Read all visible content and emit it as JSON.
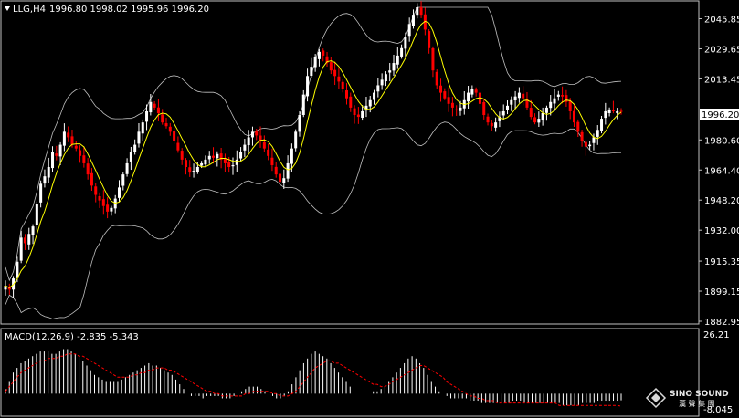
{
  "header": {
    "symbol_label": "LLG,H4",
    "ohlc_label": "1996.80 1998.02 1995.96 1996.20"
  },
  "price_axis": {
    "ticks": [
      "2045.85",
      "2029.65",
      "2013.45",
      "1996.20",
      "1980.60",
      "1964.40",
      "1948.20",
      "1932.00",
      "1915.35",
      "1899.15",
      "1882.95"
    ],
    "current_price_label": "1996.20"
  },
  "macd_panel": {
    "label": "MACD(12,26,9) -2.835 -5.343",
    "top_label": "26.21",
    "bottom_label": "-8.045"
  },
  "watermark": {
    "brand": "SINO SOUND",
    "sub": "漢 聲 集 團"
  },
  "colors": {
    "background": "#000000",
    "bull_candle": "#ffffff",
    "bear_candle": "#ff0000",
    "ma": "#ffff00",
    "bands": "#c0c0c0",
    "macd_hist": "#ffffff",
    "macd_signal": "#ff0000",
    "grid": "#c0c0c0",
    "price_tag_bg": "#ffffff"
  },
  "chart_data": [
    {
      "type": "candlestick",
      "symbol": "LLG",
      "timeframe": "H4",
      "ylim": [
        1882.95,
        2052
      ],
      "close": [
        1902,
        1900,
        1906,
        1915,
        1928,
        1925,
        1930,
        1934,
        1946,
        1957,
        1961,
        1966,
        1974,
        1972,
        1978,
        1985,
        1982,
        1978,
        1976,
        1972,
        1968,
        1962,
        1956,
        1951,
        1948,
        1945,
        1942,
        1944,
        1949,
        1955,
        1962,
        1968,
        1974,
        1978,
        1985,
        1990,
        1996,
        2001,
        1998,
        1995,
        1990,
        1988,
        1985,
        1980,
        1975,
        1970,
        1966,
        1963,
        1964,
        1966,
        1968,
        1970,
        1972,
        1971,
        1973,
        1970,
        1968,
        1966,
        1967,
        1970,
        1974,
        1978,
        1982,
        1985,
        1983,
        1980,
        1976,
        1972,
        1967,
        1962,
        1958,
        1960,
        1968,
        1976,
        1985,
        1994,
        2005,
        2015,
        2020,
        2025,
        2028,
        2026,
        2022,
        2018,
        2015,
        2012,
        2008,
        2003,
        1998,
        1994,
        1993,
        1996,
        1999,
        2002,
        2006,
        2010,
        2013,
        2016,
        2018,
        2022,
        2026,
        2030,
        2036,
        2043,
        2048,
        2052,
        2048,
        2040,
        2030,
        2018,
        2010,
        2006,
        2003,
        2000,
        1998,
        1997,
        1998,
        2002,
        2006,
        2008,
        2006,
        2000,
        1994,
        1990,
        1988,
        1990,
        1993,
        1996,
        1999,
        2002,
        2004,
        2006,
        2003,
        1998,
        1993,
        1990,
        1992,
        1995,
        1998,
        2001,
        2003,
        2005,
        2004,
        2001,
        1996,
        1990,
        1985,
        1980,
        1977,
        1978,
        1982,
        1986,
        1992,
        1996,
        1997,
        1996,
        1996,
        1996.2
      ]
    },
    {
      "type": "line",
      "name": "MACD(12,26,9)",
      "main": -2.835,
      "signal": -5.343,
      "ylim": [
        -8.045,
        26.21
      ],
      "histogram": [
        2,
        5,
        9,
        11,
        13,
        14,
        15,
        16,
        17,
        18,
        18,
        18,
        17,
        17,
        18,
        19,
        19,
        18,
        17,
        16,
        14,
        12,
        10,
        8,
        7,
        6,
        5,
        5,
        5,
        5,
        6,
        7,
        8,
        9,
        10,
        11,
        12,
        13,
        12,
        12,
        11,
        10,
        9,
        8,
        6,
        4,
        2,
        0,
        -1,
        -1,
        -1,
        -2,
        -1,
        -1,
        -1,
        -1,
        -2,
        -2,
        -2,
        -1,
        0,
        1,
        2,
        3,
        3,
        3,
        2,
        1,
        0,
        -1,
        -2,
        -2,
        -1,
        1,
        4,
        7,
        10,
        13,
        15,
        17,
        18,
        17,
        16,
        15,
        13,
        11,
        9,
        7,
        5,
        3,
        1,
        0,
        0,
        0,
        0,
        1,
        1,
        2,
        3,
        5,
        7,
        9,
        11,
        13,
        15,
        16,
        15,
        13,
        11,
        8,
        5,
        3,
        1,
        0,
        -1,
        -2,
        -2,
        -2,
        -2,
        -2,
        -3,
        -3,
        -3,
        -4,
        -4,
        -4,
        -4,
        -4,
        -4,
        -4,
        -4,
        -3,
        -3,
        -3,
        -4,
        -4,
        -4,
        -4,
        -4,
        -4,
        -4,
        -4,
        -4,
        -4,
        -5,
        -5,
        -5,
        -5,
        -5,
        -4,
        -4,
        -4,
        -4,
        -3,
        -3,
        -3,
        -3,
        -3,
        -3,
        -2.835
      ],
      "signal_line": [
        1,
        3,
        5,
        7,
        9,
        10,
        11,
        12,
        13,
        14,
        14,
        15,
        15,
        15,
        16,
        16,
        17,
        17,
        17,
        16,
        16,
        15,
        14,
        13,
        12,
        11,
        10,
        9,
        8,
        7,
        7,
        7,
        7,
        8,
        8,
        9,
        9,
        10,
        10,
        11,
        11,
        11,
        10,
        10,
        9,
        8,
        7,
        6,
        5,
        4,
        3,
        2,
        1,
        1,
        0,
        0,
        -1,
        -1,
        -1,
        -1,
        -1,
        -1,
        0,
        0,
        1,
        1,
        1,
        1,
        1,
        0,
        0,
        -1,
        -1,
        -1,
        0,
        1,
        3,
        5,
        7,
        9,
        11,
        12,
        13,
        14,
        14,
        13,
        13,
        12,
        11,
        10,
        9,
        8,
        7,
        6,
        5,
        4,
        4,
        3,
        3,
        4,
        5,
        6,
        7,
        8,
        9,
        10,
        11,
        12,
        12,
        11,
        10,
        9,
        8,
        7,
        5,
        4,
        3,
        2,
        1,
        0,
        -1,
        -1,
        -2,
        -2,
        -3,
        -3,
        -3,
        -4,
        -4,
        -4,
        -4,
        -4,
        -4,
        -4,
        -4,
        -4,
        -4,
        -4,
        -4,
        -4,
        -4,
        -4,
        -4,
        -5,
        -5,
        -5,
        -5,
        -5,
        -5,
        -5,
        -5,
        -5,
        -5,
        -5,
        -5,
        -5,
        -5,
        -5,
        -5,
        -5.343
      ]
    }
  ]
}
